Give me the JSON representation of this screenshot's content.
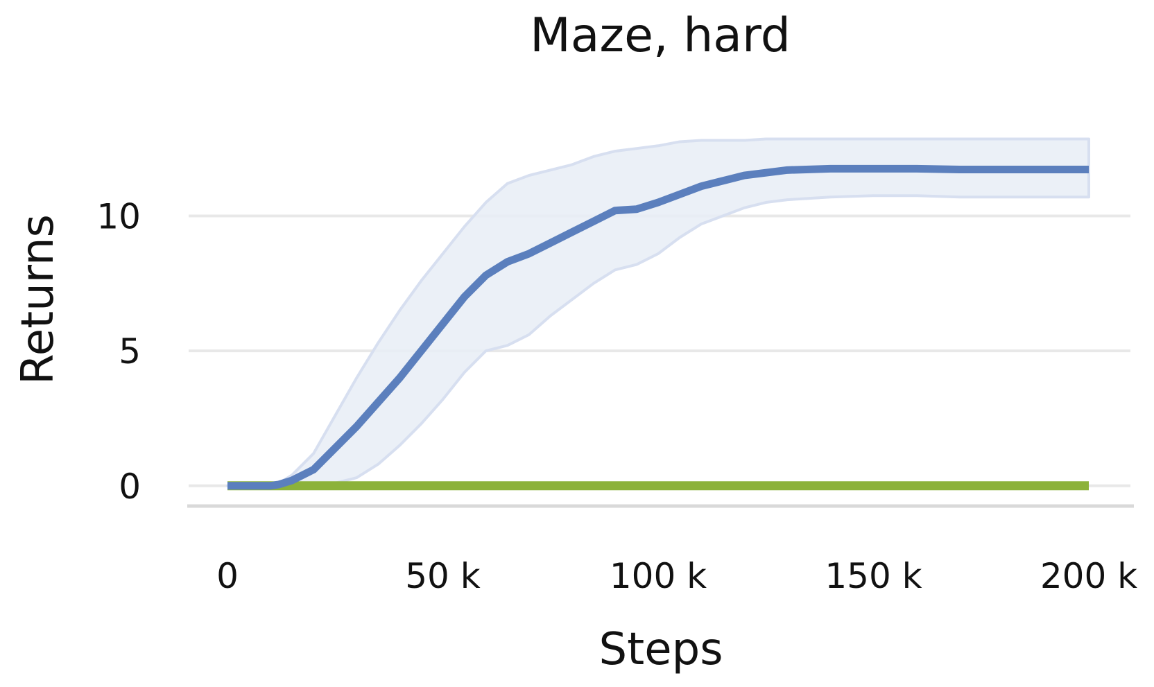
{
  "chart_data": {
    "type": "line",
    "title": "Maze, hard",
    "xlabel": "Steps",
    "ylabel": "Returns",
    "xlim": [
      0,
      200000
    ],
    "ylim": [
      -0.7,
      14.2
    ],
    "x_ticks": [
      {
        "value": 0,
        "label": "0"
      },
      {
        "value": 50000,
        "label": "50 k"
      },
      {
        "value": 100000,
        "label": "100 k"
      },
      {
        "value": 150000,
        "label": "150 k"
      },
      {
        "value": 200000,
        "label": "200 k"
      }
    ],
    "y_ticks": [
      {
        "value": 0,
        "label": "0"
      },
      {
        "value": 5,
        "label": "5"
      },
      {
        "value": 10,
        "label": "10"
      }
    ],
    "grid": "horizontal",
    "legend": "none",
    "colors": {
      "series_main": "#5b7fbd",
      "series_band": "#e8edf6",
      "series_baseline": "#8cb23a",
      "grid": "#e8e8e8",
      "axis": "#d9d9d9"
    },
    "series": [
      {
        "x": [
          0,
          5000,
          10000,
          12000,
          15000,
          20000,
          25000,
          30000,
          35000,
          40000,
          45000,
          50000,
          55000,
          60000,
          65000,
          70000,
          75000,
          80000,
          85000,
          90000,
          95000,
          100000,
          105000,
          110000,
          115000,
          120000,
          125000,
          130000,
          140000,
          150000,
          160000,
          170000,
          180000,
          190000,
          200000
        ],
        "y": [
          0,
          0,
          0,
          0.05,
          0.2,
          0.6,
          1.4,
          2.2,
          3.1,
          4.0,
          5.0,
          6.0,
          7.0,
          7.8,
          8.3,
          8.6,
          9.0,
          9.4,
          9.8,
          10.2,
          10.25,
          10.5,
          10.8,
          11.1,
          11.3,
          11.5,
          11.6,
          11.7,
          11.75,
          11.75,
          11.75,
          11.72,
          11.72,
          11.72,
          11.72
        ],
        "lower": [
          0,
          0,
          0,
          0,
          0,
          0,
          0.1,
          0.3,
          0.8,
          1.5,
          2.3,
          3.2,
          4.2,
          5.0,
          5.2,
          5.6,
          6.3,
          6.9,
          7.5,
          8.0,
          8.2,
          8.6,
          9.2,
          9.7,
          10.0,
          10.3,
          10.5,
          10.6,
          10.7,
          10.75,
          10.75,
          10.7,
          10.7,
          10.7,
          10.7
        ],
        "upper": [
          0,
          0,
          0,
          0.1,
          0.4,
          1.2,
          2.6,
          4.0,
          5.3,
          6.5,
          7.6,
          8.6,
          9.6,
          10.5,
          11.2,
          11.5,
          11.7,
          11.9,
          12.2,
          12.4,
          12.5,
          12.6,
          12.75,
          12.8,
          12.8,
          12.8,
          12.85,
          12.85,
          12.85,
          12.85,
          12.85,
          12.85,
          12.85,
          12.85,
          12.85
        ]
      },
      {
        "x": [
          0,
          200000
        ],
        "y": [
          0,
          0
        ]
      }
    ]
  }
}
